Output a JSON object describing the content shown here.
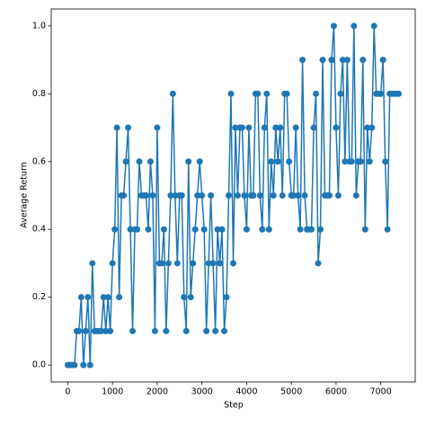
{
  "chart_data": {
    "type": "line",
    "xlabel": "Step",
    "ylabel": "Average Return",
    "x": [
      0,
      50,
      100,
      150,
      200,
      250,
      300,
      350,
      400,
      450,
      500,
      550,
      600,
      650,
      700,
      750,
      800,
      850,
      900,
      950,
      1000,
      1050,
      1100,
      1150,
      1200,
      1250,
      1300,
      1350,
      1400,
      1450,
      1500,
      1550,
      1600,
      1650,
      1700,
      1750,
      1800,
      1850,
      1900,
      1950,
      2000,
      2050,
      2100,
      2150,
      2200,
      2250,
      2300,
      2350,
      2400,
      2450,
      2500,
      2550,
      2600,
      2650,
      2700,
      2750,
      2800,
      2850,
      2900,
      2950,
      3000,
      3050,
      3100,
      3150,
      3200,
      3250,
      3300,
      3350,
      3400,
      3450,
      3500,
      3550,
      3600,
      3650,
      3700,
      3750,
      3800,
      3850,
      3900,
      3950,
      4000,
      4050,
      4100,
      4150,
      4200,
      4250,
      4300,
      4350,
      4400,
      4450,
      4500,
      4550,
      4600,
      4650,
      4700,
      4750,
      4800,
      4850,
      4900,
      4950,
      5000,
      5050,
      5100,
      5150,
      5200,
      5250,
      5300,
      5350,
      5400,
      5450,
      5500,
      5550,
      5600,
      5650,
      5700,
      5750,
      5800,
      5850,
      5900,
      5950,
      6000,
      6050,
      6100,
      6150,
      6200,
      6250,
      6300,
      6350,
      6400,
      6450,
      6500,
      6550,
      6600,
      6650,
      6700,
      6750,
      6800,
      6850,
      6900,
      6950,
      7000,
      7050,
      7100,
      7150,
      7200,
      7250,
      7300,
      7350,
      7400
    ],
    "series": [
      {
        "name": "Average Return",
        "color": "#1f77b4",
        "values": [
          0,
          0,
          0,
          0,
          0.1,
          0.1,
          0.2,
          0,
          0.1,
          0.2,
          0,
          0.3,
          0.1,
          0.1,
          0.1,
          0.1,
          0.2,
          0.1,
          0.2,
          0.1,
          0.3,
          0.4,
          0.7,
          0.2,
          0.5,
          0.5,
          0.6,
          0.7,
          0.4,
          0.1,
          0.4,
          0.4,
          0.6,
          0.5,
          0.5,
          0.5,
          0.4,
          0.6,
          0.5,
          0.1,
          0.7,
          0.3,
          0.3,
          0.4,
          0.1,
          0.3,
          0.5,
          0.8,
          0.5,
          0.3,
          0.5,
          0.5,
          0.2,
          0.1,
          0.6,
          0.2,
          0.3,
          0.4,
          0.5,
          0.6,
          0.5,
          0.4,
          0.1,
          0.3,
          0.5,
          0.3,
          0.1,
          0.4,
          0.3,
          0.4,
          0.1,
          0.2,
          0.5,
          0.8,
          0.3,
          0.7,
          0.5,
          0.7,
          0.7,
          0.5,
          0.4,
          0.7,
          0.5,
          0.5,
          0.8,
          0.8,
          0.5,
          0.4,
          0.7,
          0.8,
          0.4,
          0.6,
          0.5,
          0.7,
          0.6,
          0.7,
          0.5,
          0.8,
          0.8,
          0.6,
          0.5,
          0.5,
          0.7,
          0.5,
          0.4,
          0.9,
          0.5,
          0.4,
          0.4,
          0.4,
          0.7,
          0.8,
          0.3,
          0.4,
          0.9,
          0.5,
          0.5,
          0.5,
          0.9,
          1.0,
          0.7,
          0.5,
          0.8,
          0.9,
          0.6,
          0.9,
          0.6,
          0.6,
          1.0,
          0.5,
          0.6,
          0.6,
          0.9,
          0.4,
          0.7,
          0.6,
          0.7,
          1.0,
          0.8,
          0.8,
          0.8,
          0.9,
          0.6,
          0.4,
          0.8,
          0.8,
          0.8,
          0.8,
          0.8
        ]
      }
    ],
    "xlim": [
      -370,
      7770
    ],
    "ylim": [
      -0.05,
      1.05
    ],
    "xticks": [
      0,
      1000,
      2000,
      3000,
      4000,
      5000,
      6000,
      7000
    ],
    "yticks": [
      {
        "value": 0,
        "label": "0.0"
      },
      0.2,
      0.4,
      0.6,
      0.8,
      {
        "value": 1,
        "label": "1.0"
      }
    ]
  }
}
